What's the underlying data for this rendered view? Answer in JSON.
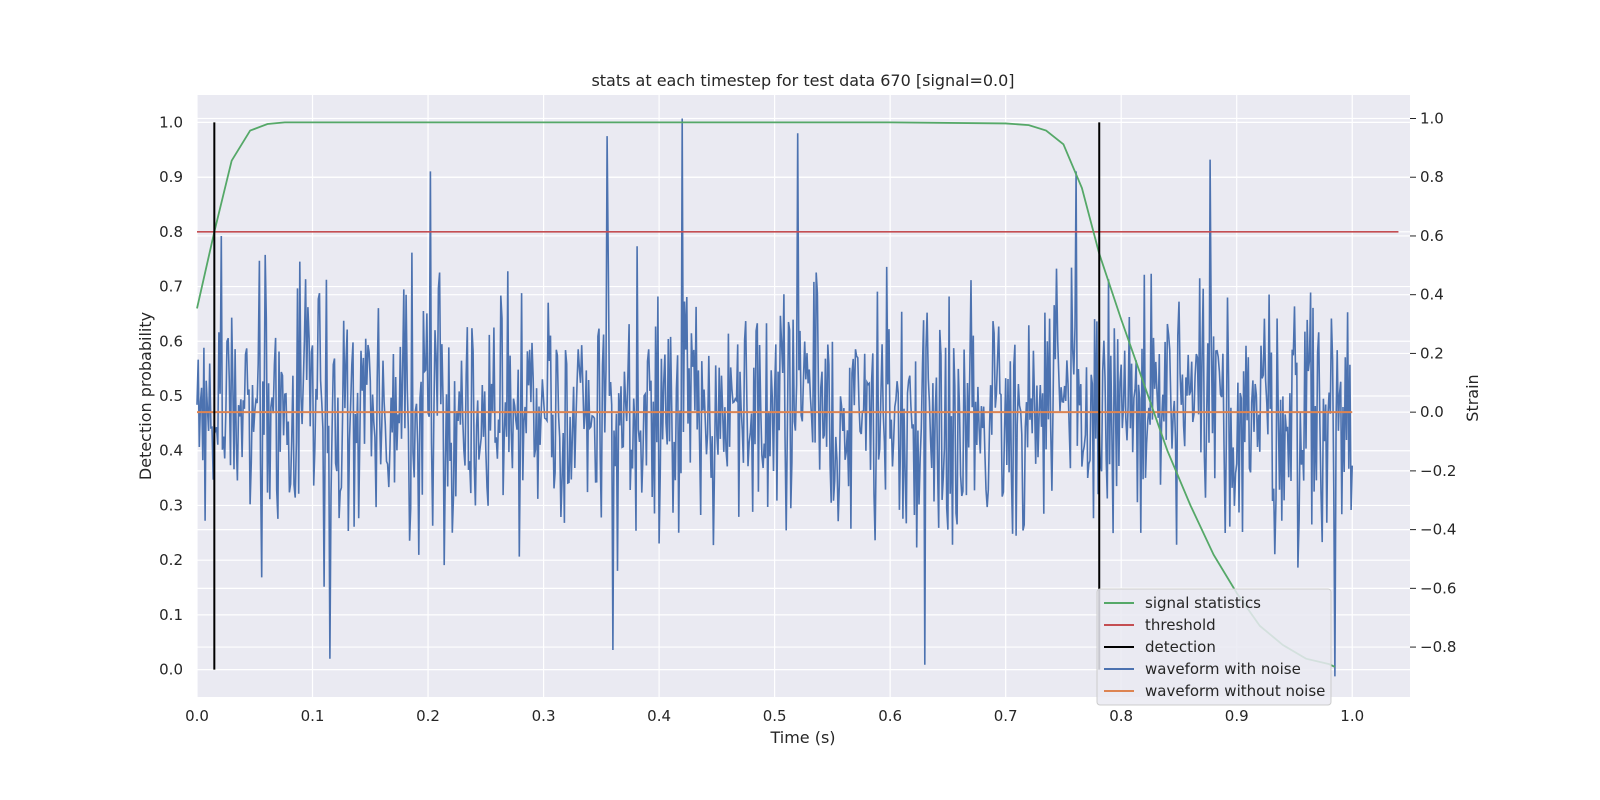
{
  "chart_data": {
    "type": "line",
    "title": "stats at each timestep for test data 670 [signal=0.0]",
    "xlabel": "Time (s)",
    "ylabel": "Detection probability",
    "ylabel_right": "Strain",
    "xlim": [
      0.0,
      1.05
    ],
    "ylim": [
      -0.05,
      1.05
    ],
    "ylim_right": [
      -0.97,
      1.08
    ],
    "x_ticks": [
      "0.0",
      "0.1",
      "0.2",
      "0.3",
      "0.4",
      "0.5",
      "0.6",
      "0.7",
      "0.8",
      "0.9",
      "1.0"
    ],
    "y_ticks": [
      "0.0",
      "0.1",
      "0.2",
      "0.3",
      "0.4",
      "0.5",
      "0.6",
      "0.7",
      "0.8",
      "0.9",
      "1.0"
    ],
    "y_right_ticks": [
      "−0.8",
      "−0.6",
      "−0.4",
      "−0.2",
      "0.0",
      "0.2",
      "0.4",
      "0.6",
      "0.8",
      "1.0"
    ],
    "y_right_tick_values": [
      -0.8,
      -0.6,
      -0.4,
      -0.2,
      0.0,
      0.2,
      0.4,
      0.6,
      0.8,
      1.0
    ],
    "grid": true,
    "legend_position": "lower-right",
    "colors": {
      "signal_statistics": "#55a868",
      "threshold": "#c44e52",
      "detection": "#000000",
      "waveform_with_noise": "#4c72b0",
      "waveform_without_noise": "#dd8452",
      "axes_background": "#eaeaf2",
      "grid": "#ffffff"
    },
    "series": [
      {
        "name": "signal statistics",
        "axis": "left",
        "x": [
          0.0,
          0.015,
          0.03,
          0.046,
          0.061,
          0.076,
          0.1,
          0.2,
          0.3,
          0.4,
          0.5,
          0.6,
          0.7,
          0.72,
          0.735,
          0.75,
          0.766,
          0.781,
          0.8,
          0.82,
          0.84,
          0.86,
          0.88,
          0.9,
          0.92,
          0.94,
          0.96,
          0.98,
          0.985
        ],
        "y": [
          0.66,
          0.8,
          0.93,
          0.985,
          0.997,
          1.0,
          1.0,
          1.0,
          1.0,
          1.0,
          1.0,
          1.0,
          0.998,
          0.995,
          0.985,
          0.96,
          0.88,
          0.76,
          0.64,
          0.52,
          0.4,
          0.3,
          0.21,
          0.14,
          0.08,
          0.045,
          0.02,
          0.01,
          0.005
        ]
      },
      {
        "name": "threshold",
        "axis": "left",
        "x": [
          0.0,
          1.04
        ],
        "y": [
          0.8,
          0.8
        ]
      },
      {
        "name": "detection",
        "axis": "left",
        "vlines": [
          0.015,
          0.781
        ],
        "y": [
          0.0,
          1.0
        ]
      },
      {
        "name": "waveform with noise",
        "axis": "right",
        "note_values": "dense noise, approx 1000 samples spanning -0.88..1.0 strain",
        "x_range": [
          0.0,
          1.0
        ],
        "peaks": [
          [
            0.021,
            0.6
          ],
          [
            0.202,
            0.82
          ],
          [
            0.355,
            0.94
          ],
          [
            0.42,
            1.0
          ],
          [
            0.52,
            0.95
          ],
          [
            0.761,
            0.82
          ],
          [
            0.877,
            0.86
          ],
          [
            0.115,
            -0.84
          ],
          [
            0.36,
            -0.81
          ],
          [
            0.63,
            -0.86
          ],
          [
            0.985,
            -0.9
          ]
        ]
      },
      {
        "name": "waveform without noise",
        "axis": "right",
        "x": [
          0.0,
          1.0
        ],
        "y": [
          0.0,
          0.0
        ]
      }
    ]
  }
}
